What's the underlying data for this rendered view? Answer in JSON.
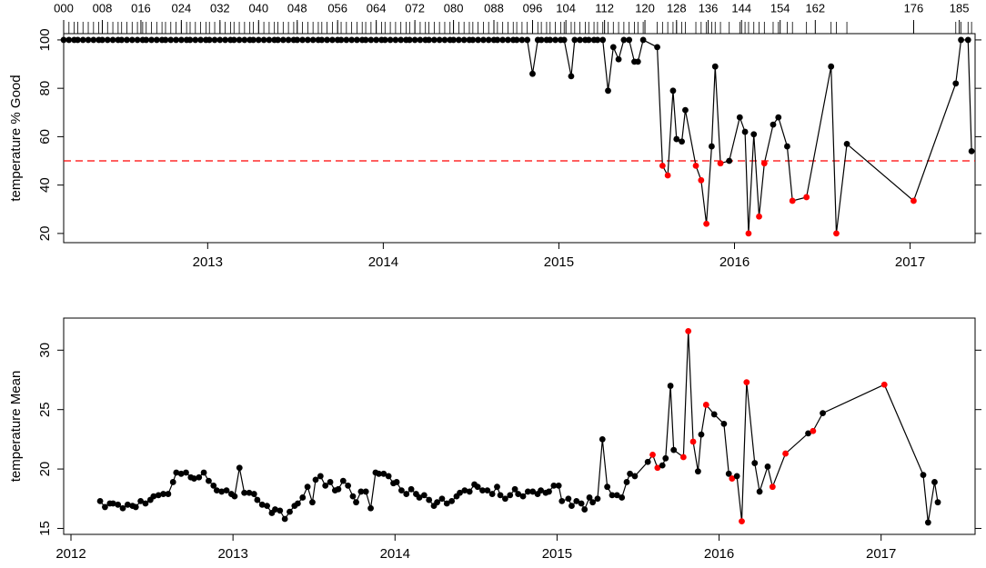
{
  "chart_data": [
    {
      "type": "line",
      "y_label": "temperature % Good",
      "color": "#000000",
      "highlight_color": "#ff0000",
      "threshold": 50,
      "threshold_color": "#ff0000",
      "xlim": [
        2012.18,
        2017.37
      ],
      "ylim": [
        16.2,
        102.6
      ],
      "xticks": [
        2013,
        2014,
        2015,
        2016,
        2017
      ],
      "yticks": [
        20,
        40,
        60,
        80,
        100
      ],
      "x2ticks": [
        {
          "value": 2012.18,
          "label": "000"
        },
        {
          "value": 2012.4,
          "label": "008"
        },
        {
          "value": 2012.62,
          "label": "016"
        },
        {
          "value": 2012.85,
          "label": "024"
        },
        {
          "value": 2013.07,
          "label": "032"
        },
        {
          "value": 2013.29,
          "label": "040"
        },
        {
          "value": 2013.51,
          "label": "048"
        },
        {
          "value": 2013.74,
          "label": "056"
        },
        {
          "value": 2013.96,
          "label": "064"
        },
        {
          "value": 2014.18,
          "label": "072"
        },
        {
          "value": 2014.4,
          "label": "080"
        },
        {
          "value": 2014.63,
          "label": "088"
        },
        {
          "value": 2014.85,
          "label": "096"
        },
        {
          "value": 2015.04,
          "label": "104"
        },
        {
          "value": 2015.26,
          "label": "112"
        },
        {
          "value": 2015.49,
          "label": "120"
        },
        {
          "value": 2015.67,
          "label": "128"
        },
        {
          "value": 2015.85,
          "label": "136"
        },
        {
          "value": 2016.04,
          "label": "144"
        },
        {
          "value": 2016.26,
          "label": "154"
        },
        {
          "value": 2016.46,
          "label": "162"
        },
        {
          "value": 2017.02,
          "label": "176"
        },
        {
          "value": 2017.28,
          "label": "185"
        }
      ],
      "x": [
        2012.18,
        2012.21,
        2012.24,
        2012.26,
        2012.29,
        2012.32,
        2012.35,
        2012.38,
        2012.4,
        2012.43,
        2012.46,
        2012.49,
        2012.51,
        2012.54,
        2012.57,
        2012.6,
        2012.63,
        2012.65,
        2012.68,
        2012.71,
        2012.74,
        2012.76,
        2012.79,
        2012.82,
        2012.85,
        2012.88,
        2012.9,
        2012.93,
        2012.96,
        2012.99,
        2013.01,
        2013.04,
        2013.07,
        2013.1,
        2013.13,
        2013.15,
        2013.18,
        2013.21,
        2013.24,
        2013.26,
        2013.29,
        2013.32,
        2013.35,
        2013.38,
        2013.4,
        2013.43,
        2013.46,
        2013.49,
        2013.51,
        2013.54,
        2013.57,
        2013.6,
        2013.63,
        2013.65,
        2013.68,
        2013.71,
        2013.74,
        2013.76,
        2013.79,
        2013.82,
        2013.85,
        2013.88,
        2013.9,
        2013.93,
        2013.96,
        2013.99,
        2014.01,
        2014.04,
        2014.07,
        2014.1,
        2014.13,
        2014.15,
        2014.18,
        2014.21,
        2014.24,
        2014.26,
        2014.29,
        2014.32,
        2014.35,
        2014.38,
        2014.4,
        2014.43,
        2014.46,
        2014.49,
        2014.51,
        2014.54,
        2014.57,
        2014.6,
        2014.63,
        2014.65,
        2014.68,
        2014.71,
        2014.74,
        2014.76,
        2014.79,
        2014.82,
        2014.85,
        2014.88,
        2014.9,
        2014.93,
        2014.95,
        2014.98,
        2015.01,
        2015.03,
        2015.07,
        2015.09,
        2015.12,
        2015.15,
        2015.17,
        2015.2,
        2015.22,
        2015.25,
        2015.28,
        2015.31,
        2015.34,
        2015.37,
        2015.4,
        2015.43,
        2015.45,
        2015.48,
        2015.56,
        2015.59,
        2015.62,
        2015.65,
        2015.67,
        2015.7,
        2015.72,
        2015.78,
        2015.81,
        2015.84,
        2015.87,
        2015.89,
        2015.92,
        2015.97,
        2016.03,
        2016.06,
        2016.08,
        2016.11,
        2016.14,
        2016.17,
        2016.22,
        2016.25,
        2016.3,
        2016.33,
        2016.41,
        2016.55,
        2016.58,
        2016.64,
        2017.02,
        2017.26,
        2017.29,
        2017.33,
        2017.35
      ],
      "values": [
        100,
        100,
        100,
        100,
        100,
        100,
        100,
        100,
        100,
        100,
        100,
        100,
        100,
        100,
        100,
        100,
        100,
        100,
        100,
        100,
        100,
        100,
        100,
        100,
        100,
        100,
        100,
        100,
        100,
        100,
        100,
        100,
        100,
        100,
        100,
        100,
        100,
        100,
        100,
        100,
        100,
        100,
        100,
        100,
        100,
        100,
        100,
        100,
        100,
        100,
        100,
        100,
        100,
        100,
        100,
        100,
        100,
        100,
        100,
        100,
        100,
        100,
        100,
        100,
        100,
        100,
        100,
        100,
        100,
        100,
        100,
        100,
        100,
        100,
        100,
        100,
        100,
        100,
        100,
        100,
        100,
        100,
        100,
        100,
        100,
        100,
        100,
        100,
        100,
        100,
        100,
        100,
        100,
        100,
        100,
        100,
        86,
        100,
        100,
        100,
        100,
        100,
        100,
        100,
        85,
        100,
        100,
        100,
        100,
        100,
        100,
        100,
        79,
        97,
        92,
        100,
        100,
        91,
        91,
        100,
        97,
        48,
        44,
        79,
        59,
        58,
        71,
        48,
        42,
        24,
        56,
        89,
        49,
        50,
        68,
        62,
        20,
        61,
        27,
        49,
        65,
        68,
        56,
        33.5,
        35,
        89,
        20,
        57,
        33.5,
        82,
        100,
        100,
        54
      ]
    },
    {
      "type": "line",
      "y_label": "temperature Mean",
      "color": "#000000",
      "highlight_color": "#ff0000",
      "xlim": [
        2011.955,
        2017.58
      ],
      "ylim": [
        14.5,
        32.7
      ],
      "xticks": [
        2012,
        2013,
        2014,
        2015,
        2016,
        2017
      ],
      "yticks": [
        15,
        20,
        25,
        30
      ],
      "x": [
        2012.18,
        2012.21,
        2012.24,
        2012.26,
        2012.29,
        2012.32,
        2012.35,
        2012.38,
        2012.4,
        2012.43,
        2012.46,
        2012.49,
        2012.51,
        2012.54,
        2012.57,
        2012.6,
        2012.63,
        2012.65,
        2012.68,
        2012.71,
        2012.74,
        2012.76,
        2012.79,
        2012.82,
        2012.85,
        2012.88,
        2012.9,
        2012.93,
        2012.96,
        2012.99,
        2013.01,
        2013.04,
        2013.07,
        2013.1,
        2013.13,
        2013.15,
        2013.18,
        2013.21,
        2013.24,
        2013.26,
        2013.29,
        2013.32,
        2013.35,
        2013.38,
        2013.4,
        2013.43,
        2013.46,
        2013.49,
        2013.51,
        2013.54,
        2013.57,
        2013.6,
        2013.63,
        2013.65,
        2013.68,
        2013.71,
        2013.74,
        2013.76,
        2013.79,
        2013.82,
        2013.85,
        2013.88,
        2013.9,
        2013.93,
        2013.96,
        2013.99,
        2014.01,
        2014.04,
        2014.07,
        2014.1,
        2014.13,
        2014.15,
        2014.18,
        2014.21,
        2014.24,
        2014.26,
        2014.29,
        2014.32,
        2014.35,
        2014.38,
        2014.4,
        2014.43,
        2014.46,
        2014.49,
        2014.51,
        2014.54,
        2014.57,
        2014.6,
        2014.63,
        2014.65,
        2014.68,
        2014.71,
        2014.74,
        2014.76,
        2014.79,
        2014.82,
        2014.85,
        2014.88,
        2014.9,
        2014.93,
        2014.95,
        2014.98,
        2015.01,
        2015.03,
        2015.07,
        2015.09,
        2015.12,
        2015.15,
        2015.17,
        2015.2,
        2015.22,
        2015.25,
        2015.28,
        2015.31,
        2015.34,
        2015.37,
        2015.4,
        2015.43,
        2015.45,
        2015.48,
        2015.56,
        2015.59,
        2015.62,
        2015.65,
        2015.67,
        2015.7,
        2015.72,
        2015.78,
        2015.81,
        2015.84,
        2015.87,
        2015.89,
        2015.92,
        2015.97,
        2016.03,
        2016.06,
        2016.08,
        2016.11,
        2016.14,
        2016.17,
        2016.22,
        2016.25,
        2016.3,
        2016.33,
        2016.41,
        2016.55,
        2016.58,
        2016.64,
        2017.02,
        2017.26,
        2017.29,
        2017.33,
        2017.35
      ],
      "values": [
        17.3,
        16.8,
        17.1,
        17.1,
        17.0,
        16.7,
        17.0,
        16.9,
        16.8,
        17.3,
        17.1,
        17.4,
        17.7,
        17.8,
        17.9,
        17.9,
        18.9,
        19.7,
        19.6,
        19.7,
        19.3,
        19.2,
        19.3,
        19.7,
        19.0,
        18.6,
        18.2,
        18.1,
        18.2,
        17.9,
        17.7,
        20.1,
        18.0,
        18.0,
        17.9,
        17.4,
        17.0,
        16.9,
        16.3,
        16.6,
        16.5,
        15.8,
        16.4,
        16.9,
        17.1,
        17.6,
        18.5,
        17.2,
        19.1,
        19.4,
        18.6,
        18.9,
        18.2,
        18.3,
        19.0,
        18.6,
        17.7,
        17.2,
        18.1,
        18.1,
        16.7,
        19.7,
        19.6,
        19.6,
        19.4,
        18.8,
        18.9,
        18.2,
        17.9,
        18.3,
        17.9,
        17.6,
        17.8,
        17.4,
        16.9,
        17.2,
        17.5,
        17.1,
        17.3,
        17.7,
        18.0,
        18.2,
        18.1,
        18.7,
        18.5,
        18.2,
        18.2,
        17.9,
        18.5,
        17.8,
        17.5,
        17.8,
        18.3,
        17.9,
        17.7,
        18.1,
        18.1,
        17.9,
        18.2,
        18.0,
        18.1,
        18.6,
        18.6,
        17.3,
        17.5,
        16.9,
        17.3,
        17.1,
        16.6,
        17.6,
        17.2,
        17.5,
        22.5,
        18.5,
        17.8,
        17.8,
        17.6,
        18.9,
        19.6,
        19.4,
        20.6,
        21.2,
        20.1,
        20.3,
        20.9,
        27.0,
        21.6,
        21.0,
        31.6,
        22.3,
        19.8,
        22.9,
        25.4,
        24.6,
        23.8,
        19.6,
        19.2,
        19.4,
        15.6,
        27.3,
        20.5,
        18.1,
        20.2,
        18.5,
        21.3,
        23.0,
        23.2,
        24.7,
        27.1,
        19.5,
        15.5,
        18.9,
        17.2
      ]
    }
  ]
}
